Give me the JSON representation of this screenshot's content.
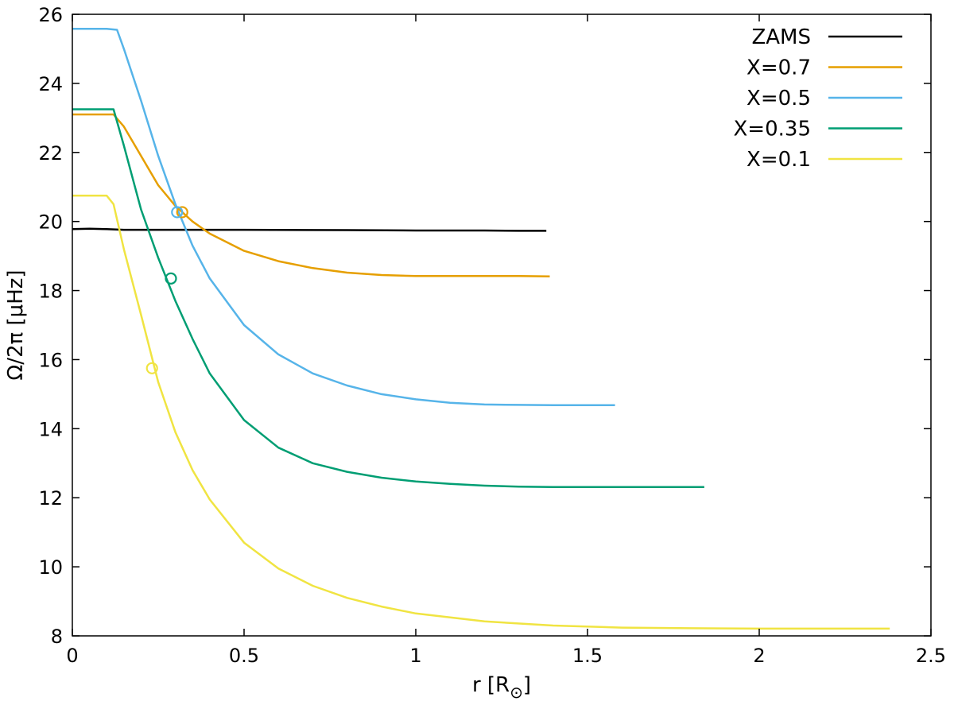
{
  "chart_data": {
    "type": "line",
    "xlabel": "r [R",
    "xlabel_subscript": "⊙",
    "xlabel_suffix": "]",
    "ylabel": "Ω/2π [μHz]",
    "xlim": [
      0,
      2.5
    ],
    "ylim": [
      8,
      26
    ],
    "xticks": [
      0,
      0.5,
      1,
      1.5,
      2,
      2.5
    ],
    "xtick_labels": [
      "0",
      "0.5",
      "1",
      "1.5",
      "2",
      "2.5"
    ],
    "yticks": [
      8,
      10,
      12,
      14,
      16,
      18,
      20,
      22,
      24,
      26
    ],
    "ytick_labels": [
      "8",
      "10",
      "12",
      "14",
      "16",
      "18",
      "20",
      "22",
      "24",
      "26"
    ],
    "grid": false,
    "legend_position": "top-right",
    "series": [
      {
        "name": "ZAMS",
        "color": "#000000",
        "x": [
          0,
          0.05,
          0.1,
          0.15,
          0.2,
          0.3,
          0.5,
          0.8,
          1.0,
          1.2,
          1.3,
          1.38
        ],
        "y": [
          19.78,
          19.79,
          19.78,
          19.76,
          19.76,
          19.76,
          19.76,
          19.75,
          19.74,
          19.74,
          19.73,
          19.73
        ],
        "marker": null
      },
      {
        "name": "X=0.7",
        "color": "#e69f00",
        "x": [
          0,
          0.12,
          0.15,
          0.2,
          0.25,
          0.3,
          0.35,
          0.4,
          0.5,
          0.6,
          0.7,
          0.8,
          0.9,
          1.0,
          1.1,
          1.2,
          1.3,
          1.39
        ],
        "y": [
          23.1,
          23.1,
          22.75,
          21.9,
          21.05,
          20.45,
          20.0,
          19.65,
          19.15,
          18.85,
          18.65,
          18.52,
          18.45,
          18.42,
          18.42,
          18.42,
          18.42,
          18.41
        ],
        "marker": {
          "x": 0.32,
          "y": 20.27
        }
      },
      {
        "name": "X=0.5",
        "color": "#56b4e9",
        "x": [
          0,
          0.1,
          0.13,
          0.15,
          0.2,
          0.25,
          0.3,
          0.35,
          0.4,
          0.5,
          0.6,
          0.7,
          0.8,
          0.9,
          1.0,
          1.1,
          1.2,
          1.3,
          1.4,
          1.5,
          1.58
        ],
        "y": [
          25.58,
          25.58,
          25.55,
          25.0,
          23.5,
          21.9,
          20.5,
          19.3,
          18.35,
          17.0,
          16.15,
          15.6,
          15.25,
          15.0,
          14.85,
          14.75,
          14.7,
          14.69,
          14.68,
          14.68,
          14.68
        ],
        "marker": {
          "x": 0.305,
          "y": 20.27
        }
      },
      {
        "name": "X=0.35",
        "color": "#009e73",
        "x": [
          0,
          0.12,
          0.15,
          0.2,
          0.25,
          0.3,
          0.35,
          0.4,
          0.5,
          0.6,
          0.7,
          0.8,
          0.9,
          1.0,
          1.1,
          1.2,
          1.3,
          1.4,
          1.5,
          1.6,
          1.7,
          1.84
        ],
        "y": [
          23.25,
          23.25,
          22.2,
          20.35,
          18.95,
          17.7,
          16.6,
          15.6,
          14.25,
          13.45,
          13.0,
          12.75,
          12.58,
          12.47,
          12.4,
          12.35,
          12.32,
          12.31,
          12.31,
          12.31,
          12.31,
          12.31
        ],
        "marker": {
          "x": 0.287,
          "y": 18.35
        }
      },
      {
        "name": "X=0.1",
        "color": "#f0e442",
        "x": [
          0,
          0.1,
          0.12,
          0.15,
          0.2,
          0.25,
          0.3,
          0.35,
          0.4,
          0.5,
          0.6,
          0.7,
          0.8,
          0.9,
          1.0,
          1.2,
          1.4,
          1.6,
          1.8,
          2.0,
          2.2,
          2.38
        ],
        "y": [
          20.75,
          20.75,
          20.5,
          19.2,
          17.3,
          15.35,
          13.9,
          12.8,
          11.95,
          10.7,
          9.95,
          9.45,
          9.1,
          8.85,
          8.65,
          8.42,
          8.3,
          8.24,
          8.22,
          8.21,
          8.21,
          8.21
        ],
        "marker": {
          "x": 0.232,
          "y": 15.75
        }
      }
    ]
  }
}
